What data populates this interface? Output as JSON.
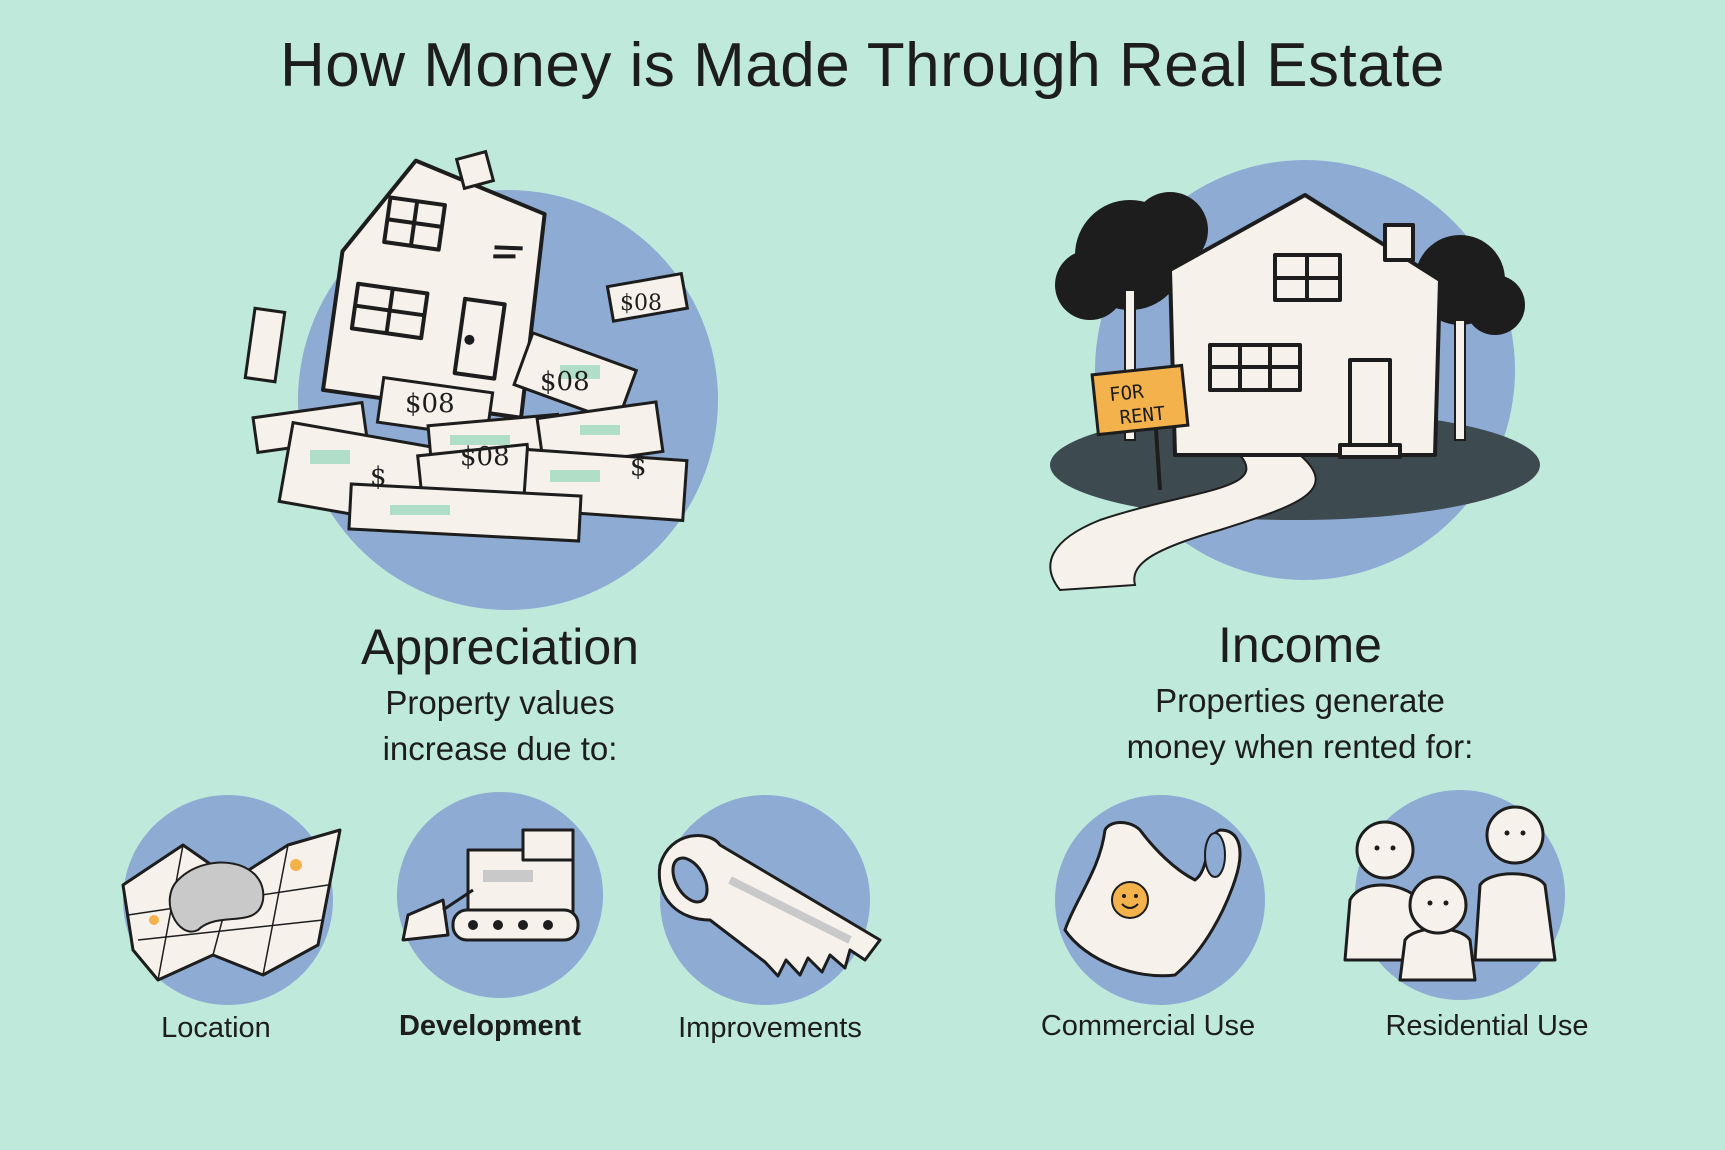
{
  "title": "How Money is Made Through Real Estate",
  "appreciation": {
    "heading": "Appreciation",
    "description_line1": "Property values",
    "description_line2": "increase due to:",
    "items": [
      {
        "label": "Location",
        "icon": "folded-map-icon"
      },
      {
        "label": "Development",
        "icon": "bulldozer-icon"
      },
      {
        "label": "Improvements",
        "icon": "hand-saw-icon"
      }
    ]
  },
  "income": {
    "heading": "Income",
    "description_line1": "Properties generate",
    "description_line2": "money when rented for:",
    "sign_line1": "FOR",
    "sign_line2": "RENT",
    "items": [
      {
        "label": "Commercial Use",
        "icon": "shopping-bag-icon"
      },
      {
        "label": "Residential Use",
        "icon": "family-icon"
      }
    ]
  },
  "colors": {
    "background": "#bfeadb",
    "circle": "#8eabd4",
    "paper": "#f6f1ea",
    "money_green": "#a9dcc4",
    "sign_orange": "#f4b24c",
    "ink": "#1d1d1d"
  }
}
